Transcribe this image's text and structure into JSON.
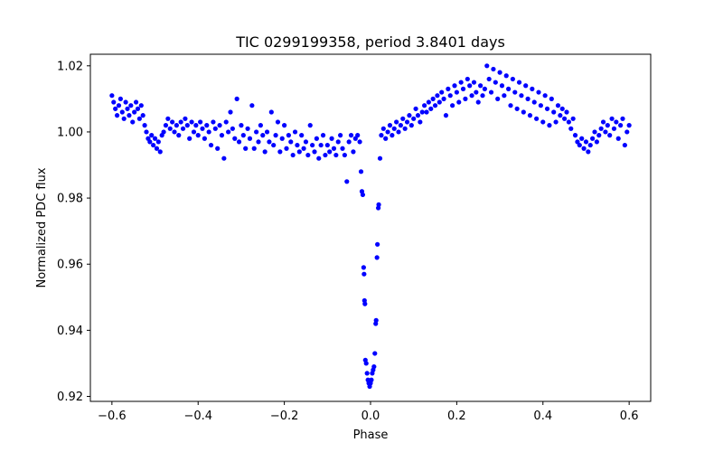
{
  "chart_data": {
    "type": "scatter",
    "title": "TIC 0299199358, period 3.8401 days",
    "xlabel": "Phase",
    "ylabel": "Normalized PDC flux",
    "xlim": [
      -0.65,
      0.65
    ],
    "ylim": [
      0.9185,
      1.0235
    ],
    "x_ticks": [
      -0.6,
      -0.4,
      -0.2,
      0.0,
      0.2,
      0.4,
      0.6
    ],
    "x_tick_labels": [
      "−0.6",
      "−0.4",
      "−0.2",
      "0.0",
      "0.2",
      "0.4",
      "0.6"
    ],
    "y_ticks": [
      0.92,
      0.94,
      0.96,
      0.98,
      1.0,
      1.02
    ],
    "y_tick_labels": [
      "0.92",
      "0.94",
      "0.96",
      "0.98",
      "1.00",
      "1.02"
    ],
    "grid": false,
    "marker_color": "#0000ff",
    "series": [
      {
        "points": [
          [
            -0.6,
            1.011
          ],
          [
            -0.596,
            1.009
          ],
          [
            -0.592,
            1.007
          ],
          [
            -0.588,
            1.005
          ],
          [
            -0.584,
            1.008
          ],
          [
            -0.58,
            1.01
          ],
          [
            -0.576,
            1.006
          ],
          [
            -0.572,
            1.004
          ],
          [
            -0.568,
            1.009
          ],
          [
            -0.564,
            1.007
          ],
          [
            -0.56,
            1.005
          ],
          [
            -0.556,
            1.008
          ],
          [
            -0.552,
            1.003
          ],
          [
            -0.548,
            1.006
          ],
          [
            -0.544,
            1.009
          ],
          [
            -0.54,
            1.007
          ],
          [
            -0.536,
            1.004
          ],
          [
            -0.532,
            1.008
          ],
          [
            -0.528,
            1.005
          ],
          [
            -0.524,
            1.002
          ],
          [
            -0.52,
            1.0
          ],
          [
            -0.516,
            0.998
          ],
          [
            -0.512,
            0.997
          ],
          [
            -0.508,
            0.999
          ],
          [
            -0.504,
            0.996
          ],
          [
            -0.5,
            0.998
          ],
          [
            -0.496,
            0.995
          ],
          [
            -0.492,
            0.997
          ],
          [
            -0.488,
            0.994
          ],
          [
            -0.484,
            0.999
          ],
          [
            -0.48,
            1.0
          ],
          [
            -0.475,
            1.002
          ],
          [
            -0.47,
            1.004
          ],
          [
            -0.465,
            1.001
          ],
          [
            -0.46,
            1.003
          ],
          [
            -0.455,
            1.0
          ],
          [
            -0.45,
            1.002
          ],
          [
            -0.445,
            0.999
          ],
          [
            -0.44,
            1.003
          ],
          [
            -0.435,
            1.001
          ],
          [
            -0.43,
            1.004
          ],
          [
            -0.425,
            1.002
          ],
          [
            -0.42,
            0.998
          ],
          [
            -0.415,
            1.003
          ],
          [
            -0.41,
            1.0
          ],
          [
            -0.405,
            1.002
          ],
          [
            -0.4,
            0.999
          ],
          [
            -0.395,
            1.003
          ],
          [
            -0.39,
            1.001
          ],
          [
            -0.385,
            0.998
          ],
          [
            -0.38,
            1.002
          ],
          [
            -0.375,
            1.0
          ],
          [
            -0.37,
            0.996
          ],
          [
            -0.365,
            1.003
          ],
          [
            -0.36,
            1.001
          ],
          [
            -0.355,
            0.995
          ],
          [
            -0.35,
            1.002
          ],
          [
            -0.345,
            0.999
          ],
          [
            -0.34,
            0.992
          ],
          [
            -0.335,
            1.003
          ],
          [
            -0.33,
            1.0
          ],
          [
            -0.325,
            1.006
          ],
          [
            -0.32,
            1.001
          ],
          [
            -0.315,
            0.998
          ],
          [
            -0.31,
            1.01
          ],
          [
            -0.305,
            0.997
          ],
          [
            -0.3,
            1.002
          ],
          [
            -0.295,
            0.999
          ],
          [
            -0.29,
            0.995
          ],
          [
            -0.285,
            1.001
          ],
          [
            -0.28,
            0.998
          ],
          [
            -0.275,
            1.008
          ],
          [
            -0.27,
            0.995
          ],
          [
            -0.265,
            1.0
          ],
          [
            -0.26,
            0.997
          ],
          [
            -0.255,
            1.002
          ],
          [
            -0.25,
            0.999
          ],
          [
            -0.245,
            0.994
          ],
          [
            -0.24,
            1.0
          ],
          [
            -0.235,
            0.997
          ],
          [
            -0.23,
            1.006
          ],
          [
            -0.225,
            0.996
          ],
          [
            -0.22,
            0.999
          ],
          [
            -0.215,
            1.003
          ],
          [
            -0.21,
            0.994
          ],
          [
            -0.205,
            0.998
          ],
          [
            -0.2,
            1.002
          ],
          [
            -0.195,
            0.995
          ],
          [
            -0.19,
            0.999
          ],
          [
            -0.185,
            0.997
          ],
          [
            -0.18,
            0.993
          ],
          [
            -0.175,
            1.0
          ],
          [
            -0.17,
            0.996
          ],
          [
            -0.165,
            0.994
          ],
          [
            -0.16,
            0.999
          ],
          [
            -0.155,
            0.995
          ],
          [
            -0.15,
            0.997
          ],
          [
            -0.145,
            0.993
          ],
          [
            -0.14,
            1.002
          ],
          [
            -0.135,
            0.996
          ],
          [
            -0.13,
            0.994
          ],
          [
            -0.125,
            0.998
          ],
          [
            -0.12,
            0.992
          ],
          [
            -0.115,
            0.996
          ],
          [
            -0.11,
            0.999
          ],
          [
            -0.105,
            0.993
          ],
          [
            -0.1,
            0.996
          ],
          [
            -0.095,
            0.994
          ],
          [
            -0.09,
            0.998
          ],
          [
            -0.085,
            0.995
          ],
          [
            -0.08,
            0.993
          ],
          [
            -0.075,
            0.997
          ],
          [
            -0.07,
            0.999
          ],
          [
            -0.065,
            0.995
          ],
          [
            -0.06,
            0.993
          ],
          [
            -0.055,
            0.985
          ],
          [
            -0.05,
            0.997
          ],
          [
            -0.045,
            0.999
          ],
          [
            -0.04,
            0.994
          ],
          [
            -0.035,
            0.998
          ],
          [
            -0.03,
            0.999
          ],
          [
            -0.025,
            0.997
          ],
          [
            -0.022,
            0.988
          ],
          [
            -0.02,
            0.982
          ],
          [
            -0.018,
            0.981
          ],
          [
            -0.016,
            0.959
          ],
          [
            -0.015,
            0.957
          ],
          [
            -0.014,
            0.949
          ],
          [
            -0.013,
            0.948
          ],
          [
            -0.012,
            0.931
          ],
          [
            -0.01,
            0.93
          ],
          [
            -0.008,
            0.927
          ],
          [
            -0.006,
            0.925
          ],
          [
            -0.004,
            0.924
          ],
          [
            -0.002,
            0.923
          ],
          [
            0.0,
            0.924
          ],
          [
            0.002,
            0.925
          ],
          [
            0.004,
            0.927
          ],
          [
            0.006,
            0.928
          ],
          [
            0.008,
            0.929
          ],
          [
            0.01,
            0.933
          ],
          [
            0.012,
            0.942
          ],
          [
            0.013,
            0.943
          ],
          [
            0.015,
            0.962
          ],
          [
            0.016,
            0.966
          ],
          [
            0.018,
            0.977
          ],
          [
            0.019,
            0.978
          ],
          [
            0.022,
            0.992
          ],
          [
            0.025,
            0.999
          ],
          [
            0.03,
            1.001
          ],
          [
            0.035,
            0.998
          ],
          [
            0.04,
            1.0
          ],
          [
            0.045,
            1.002
          ],
          [
            0.05,
            0.999
          ],
          [
            0.055,
            1.001
          ],
          [
            0.06,
            1.003
          ],
          [
            0.065,
            1.0
          ],
          [
            0.07,
            1.002
          ],
          [
            0.075,
            1.004
          ],
          [
            0.08,
            1.001
          ],
          [
            0.085,
            1.003
          ],
          [
            0.09,
            1.005
          ],
          [
            0.095,
            1.002
          ],
          [
            0.1,
            1.004
          ],
          [
            0.105,
            1.007
          ],
          [
            0.11,
            1.005
          ],
          [
            0.115,
            1.003
          ],
          [
            0.12,
            1.006
          ],
          [
            0.125,
            1.008
          ],
          [
            0.13,
            1.006
          ],
          [
            0.135,
            1.009
          ],
          [
            0.14,
            1.007
          ],
          [
            0.145,
            1.01
          ],
          [
            0.15,
            1.008
          ],
          [
            0.155,
            1.011
          ],
          [
            0.16,
            1.009
          ],
          [
            0.165,
            1.012
          ],
          [
            0.17,
            1.01
          ],
          [
            0.175,
            1.005
          ],
          [
            0.18,
            1.013
          ],
          [
            0.185,
            1.011
          ],
          [
            0.19,
            1.008
          ],
          [
            0.195,
            1.014
          ],
          [
            0.2,
            1.012
          ],
          [
            0.205,
            1.009
          ],
          [
            0.21,
            1.015
          ],
          [
            0.215,
            1.013
          ],
          [
            0.22,
            1.01
          ],
          [
            0.225,
            1.016
          ],
          [
            0.23,
            1.014
          ],
          [
            0.235,
            1.011
          ],
          [
            0.24,
            1.015
          ],
          [
            0.245,
            1.012
          ],
          [
            0.25,
            1.009
          ],
          [
            0.255,
            1.014
          ],
          [
            0.26,
            1.011
          ],
          [
            0.265,
            1.013
          ],
          [
            0.27,
            1.02
          ],
          [
            0.275,
            1.016
          ],
          [
            0.28,
            1.012
          ],
          [
            0.285,
            1.019
          ],
          [
            0.29,
            1.015
          ],
          [
            0.295,
            1.01
          ],
          [
            0.3,
            1.018
          ],
          [
            0.305,
            1.014
          ],
          [
            0.31,
            1.011
          ],
          [
            0.315,
            1.017
          ],
          [
            0.32,
            1.013
          ],
          [
            0.325,
            1.008
          ],
          [
            0.33,
            1.016
          ],
          [
            0.335,
            1.012
          ],
          [
            0.34,
            1.007
          ],
          [
            0.345,
            1.015
          ],
          [
            0.35,
            1.011
          ],
          [
            0.355,
            1.006
          ],
          [
            0.36,
            1.014
          ],
          [
            0.365,
            1.01
          ],
          [
            0.37,
            1.005
          ],
          [
            0.375,
            1.013
          ],
          [
            0.38,
            1.009
          ],
          [
            0.385,
            1.004
          ],
          [
            0.39,
            1.012
          ],
          [
            0.395,
            1.008
          ],
          [
            0.4,
            1.003
          ],
          [
            0.405,
            1.011
          ],
          [
            0.41,
            1.007
          ],
          [
            0.415,
            1.002
          ],
          [
            0.42,
            1.01
          ],
          [
            0.425,
            1.006
          ],
          [
            0.43,
            1.003
          ],
          [
            0.435,
            1.008
          ],
          [
            0.44,
            1.005
          ],
          [
            0.445,
            1.007
          ],
          [
            0.45,
            1.004
          ],
          [
            0.455,
            1.006
          ],
          [
            0.46,
            1.003
          ],
          [
            0.465,
            1.001
          ],
          [
            0.47,
            1.004
          ],
          [
            0.475,
            0.999
          ],
          [
            0.48,
            0.997
          ],
          [
            0.485,
            0.996
          ],
          [
            0.49,
            0.998
          ],
          [
            0.495,
            0.995
          ],
          [
            0.5,
            0.997
          ],
          [
            0.505,
            0.994
          ],
          [
            0.51,
            0.996
          ],
          [
            0.515,
            0.998
          ],
          [
            0.52,
            1.0
          ],
          [
            0.525,
            0.997
          ],
          [
            0.53,
            0.999
          ],
          [
            0.535,
            1.001
          ],
          [
            0.54,
            1.003
          ],
          [
            0.545,
            1.0
          ],
          [
            0.55,
            1.002
          ],
          [
            0.555,
            0.999
          ],
          [
            0.56,
            1.004
          ],
          [
            0.565,
            1.001
          ],
          [
            0.57,
            1.003
          ],
          [
            0.575,
            0.998
          ],
          [
            0.58,
            1.002
          ],
          [
            0.585,
            1.004
          ],
          [
            0.59,
            0.996
          ],
          [
            0.595,
            1.0
          ],
          [
            0.6,
            1.002
          ]
        ]
      }
    ]
  }
}
